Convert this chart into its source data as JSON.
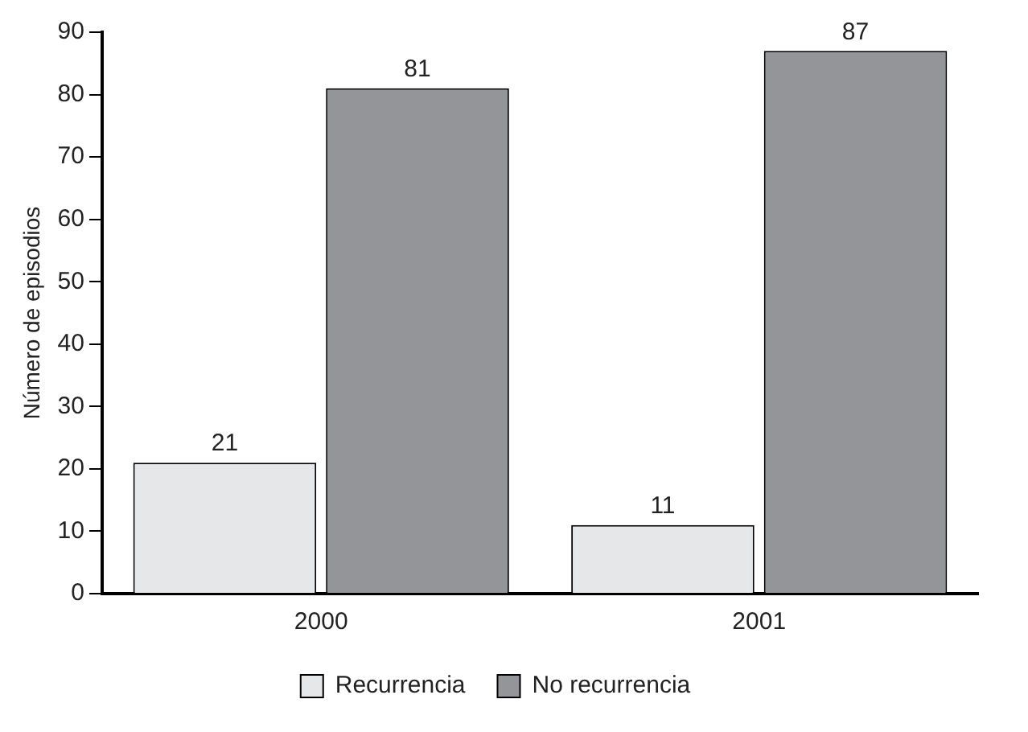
{
  "chart_data": {
    "type": "bar",
    "ylabel": "Número de episodios",
    "categories": [
      "2000",
      "2001"
    ],
    "series": [
      {
        "name": "Recurrencia",
        "color": "#e6e7e8",
        "values": [
          21,
          11
        ]
      },
      {
        "name": "No recurrencia",
        "color": "#939598",
        "values": [
          81,
          87
        ]
      }
    ],
    "ylim": [
      0,
      90
    ],
    "yticks": [
      0,
      10,
      20,
      30,
      40,
      50,
      60,
      70,
      80,
      90
    ],
    "grid": false,
    "legend": "bottom",
    "data_labels": true
  }
}
